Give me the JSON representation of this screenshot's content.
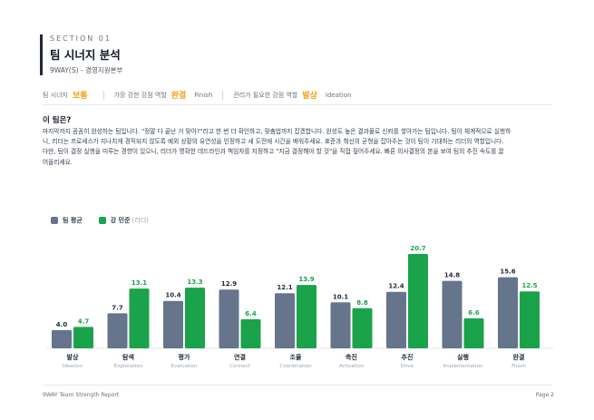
{
  "header": {
    "section": "SECTION 01",
    "title": "팀 시너지 분석",
    "subtitle": "9WAY(S) - 경영지원본부"
  },
  "summary": {
    "synergy_label": "팀 시너지",
    "synergy_value": "보통",
    "strong_label": "가장 강한 강점 역할",
    "strong_value": "완결",
    "strong_en": "Finish",
    "needed_label": "관리가 필요한 강점 역할",
    "needed_value": "발상",
    "needed_en": "Ideation"
  },
  "body": {
    "question": "이 팀은?",
    "lines": [
      "마지막까지 꼼꼼히 완성하는 팀입니다. \"정말 다 끝난 거 맞아?\"라고 한 번 더 확인하고, 맞춤법까지 잡겠합니다. 완성도 높은 결과물로 신뢰를 쌓아가는 팀입니다. 팀이 체계적으로 실행하",
      "니, 리더는 프로세스가 지나치게 경직되지 않도록 예외 상황의 유연성을 인정하고 새 도전에 시간을 배워주세요. 표준과 혁신의 균형을 잡아주는 것이 팀이 기대하는 리더의 역할입니다.",
      "다만, 팀이 결정 실행을 미루는 경향이 있으니, 리더가 명확한 데드라인과 책임자를 지정하고 \"지금 결정해야 할 것\"을 직접 짚어주세요. 빠른 의사결정의 본을 보여 팀의 추진 속도를 끌",
      "어올리세요."
    ]
  },
  "legend": {
    "team_label": "팀 평균",
    "leader_label": "강 민준",
    "leader_suffix": "(리더)"
  },
  "colors": {
    "team": "#66748c",
    "leader": "#1aa34a",
    "accent": "#f59e0b"
  },
  "chart_data": {
    "type": "bar",
    "categories": [
      "발상",
      "탐색",
      "평가",
      "연결",
      "조율",
      "촉진",
      "추진",
      "실행",
      "완결"
    ],
    "categories_en": [
      "Ideation",
      "Exploration",
      "Evaluation",
      "Connect",
      "Coordination",
      "Activation",
      "Drive",
      "Implementation",
      "Finish"
    ],
    "series": [
      {
        "name": "팀 평균",
        "values": [
          4.0,
          7.7,
          10.4,
          12.9,
          12.1,
          10.1,
          12.4,
          14.8,
          15.6
        ],
        "labels": [
          "4.0",
          "7.7",
          "10.4",
          "12.9",
          "12.1",
          "10.1",
          "12.4",
          "14.8",
          "15.6"
        ]
      },
      {
        "name": "강 민준 (리더)",
        "values": [
          4.7,
          13.1,
          13.3,
          6.4,
          13.9,
          8.8,
          20.7,
          6.6,
          12.5
        ],
        "labels": [
          "4.7",
          "13.1",
          "13.3",
          "6.4",
          "13.9",
          "8.8",
          "20.7",
          "6.6",
          "12.5"
        ]
      }
    ],
    "ylim": [
      0,
      20.7
    ],
    "grid": false,
    "legend": "top-left"
  },
  "footer": {
    "left": "9WAY Team Strength Report",
    "right": "Page 2"
  }
}
